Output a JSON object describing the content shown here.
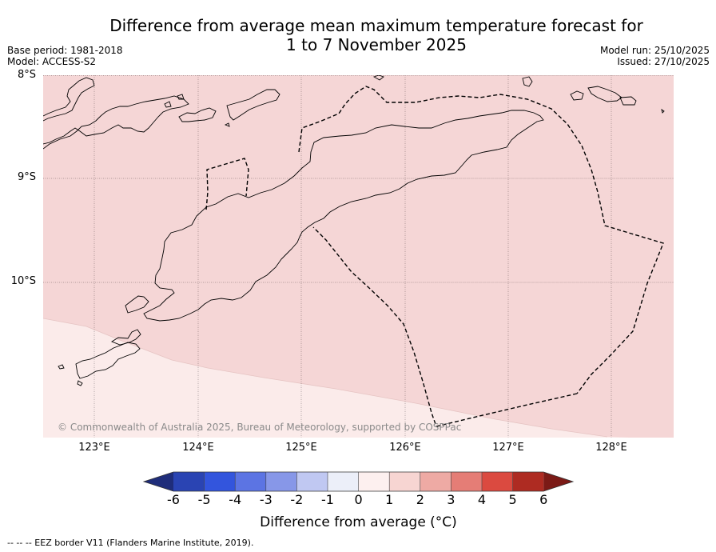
{
  "title": {
    "line1": "Difference from average mean maximum temperature forecast for",
    "line2": "1 to 7 November 2025"
  },
  "meta_left": {
    "base_period": "Base period: 1981-2018",
    "model": "Model: ACCESS-S2"
  },
  "meta_right": {
    "model_run": "Model run: 25/10/2025",
    "issued": "Issued: 27/10/2025"
  },
  "map": {
    "lat_labels": [
      "8°S",
      "9°S",
      "10°S"
    ],
    "lon_labels": [
      "123°E",
      "124°E",
      "125°E",
      "126°E",
      "127°E",
      "128°E"
    ],
    "copyright": "© Commonwealth of Australia 2025, Bureau of Meteorology, supported by COSPPac",
    "regions": [
      {
        "category": "1 to 2",
        "color": "#f5d6d6"
      },
      {
        "category": "0 to 1",
        "color": "#fbebea"
      }
    ]
  },
  "colorbar": {
    "ticks": [
      "-6",
      "-5",
      "-4",
      "-3",
      "-2",
      "-1",
      "0",
      "1",
      "2",
      "3",
      "4",
      "5",
      "6"
    ],
    "colors": [
      "#1f2d7a",
      "#2a44b3",
      "#3355dd",
      "#5c74e3",
      "#8797e8",
      "#c0c8f2",
      "#eceff9",
      "#fdf0ef",
      "#f7d5d2",
      "#eeaaa4",
      "#e57d76",
      "#db4a40",
      "#ae2b22",
      "#7b1a16"
    ],
    "title": "Difference from average (°C)"
  },
  "eez_note": "--  --  -- EEZ border V11 (Flanders Marine Institute, 2019)."
}
